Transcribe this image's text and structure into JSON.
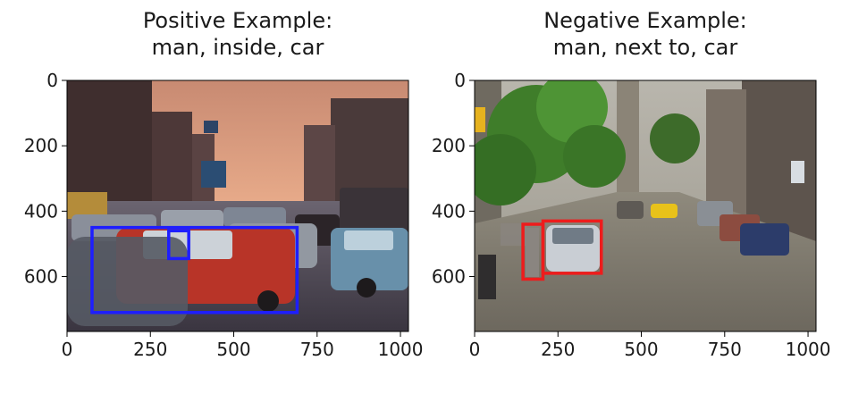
{
  "chart_data": [
    {
      "type": "image",
      "title": "Positive Example:\nman, inside, car",
      "xlim": [
        0,
        1024
      ],
      "ylim": [
        768,
        0
      ],
      "xticks": [
        0,
        250,
        500,
        750,
        1000
      ],
      "yticks": [
        0,
        200,
        400,
        600
      ],
      "xtick_labels": [
        "0",
        "250",
        "500",
        "750",
        "1000"
      ],
      "ytick_labels": [
        "0",
        "200",
        "400",
        "600"
      ],
      "boxes": [
        {
          "color": "#1e1eff",
          "x0": 75,
          "y0": 450,
          "x1": 690,
          "y1": 710
        },
        {
          "color": "#1e1eff",
          "x0": 305,
          "y0": 460,
          "x1": 365,
          "y1": 545
        }
      ]
    },
    {
      "type": "image",
      "title": "Negative Example:\nman, next to, car",
      "xlim": [
        0,
        1024
      ],
      "ylim": [
        768,
        0
      ],
      "xticks": [
        0,
        250,
        500,
        750,
        1000
      ],
      "yticks": [
        0,
        200,
        400,
        600
      ],
      "xtick_labels": [
        "0",
        "250",
        "500",
        "750",
        "1000"
      ],
      "ytick_labels": [
        "0",
        "200",
        "400",
        "600"
      ],
      "boxes": [
        {
          "color": "#ee1c1c",
          "x0": 145,
          "y0": 440,
          "x1": 205,
          "y1": 608
        },
        {
          "color": "#ee1c1c",
          "x0": 205,
          "y0": 430,
          "x1": 380,
          "y1": 590
        }
      ]
    }
  ]
}
